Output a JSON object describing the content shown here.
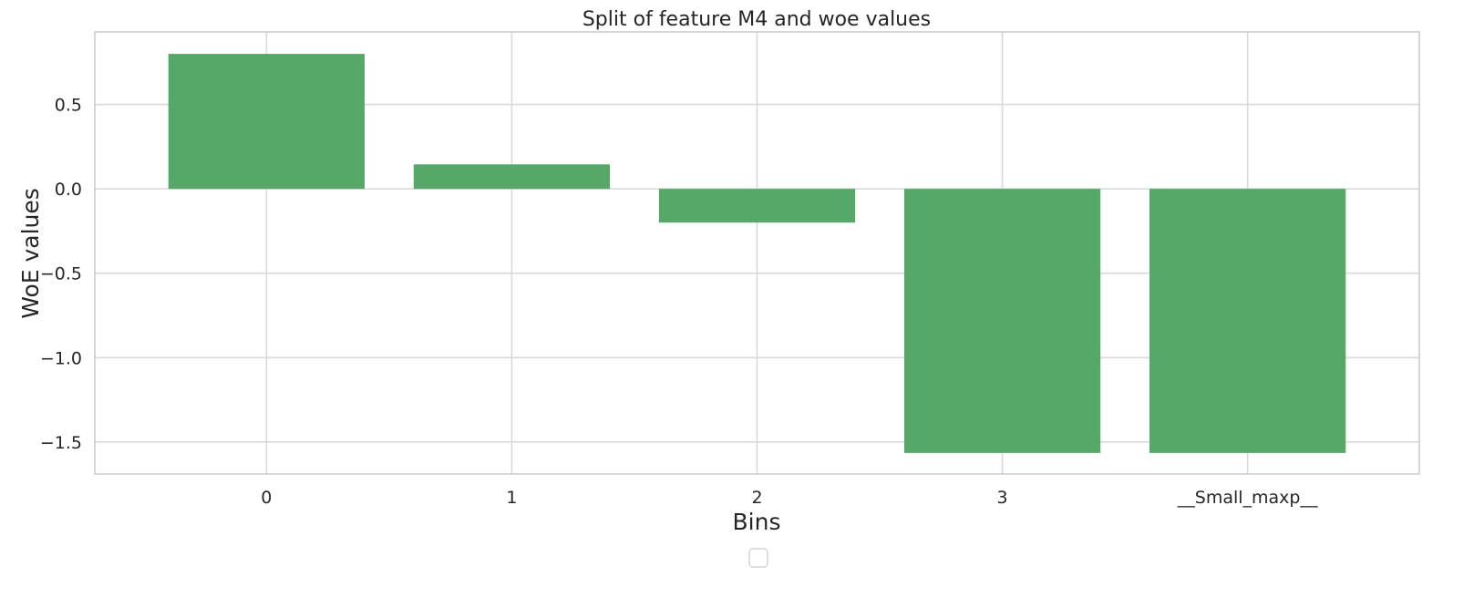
{
  "chart_data": {
    "type": "bar",
    "title": "Split of feature M4 and woe values",
    "xlabel": "Bins",
    "ylabel": "WoE values",
    "categories": [
      "0",
      "1",
      "2",
      "3",
      "__Small_maxp__"
    ],
    "values": [
      0.8,
      0.145,
      -0.2,
      -1.565,
      -1.565
    ],
    "ylim": [
      -1.69,
      0.93
    ],
    "yticks": [
      0.5,
      0.0,
      -0.5,
      -1.0,
      -1.5
    ],
    "ytick_labels": [
      "0.5",
      "0.0",
      "−0.5",
      "−1.0",
      "−1.5"
    ],
    "grid": true,
    "legend": "bottom-center",
    "bar_color": "#55a868"
  }
}
